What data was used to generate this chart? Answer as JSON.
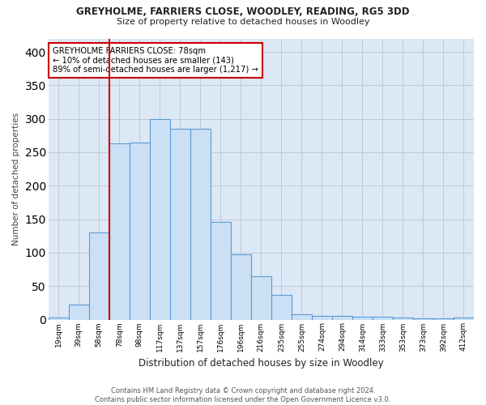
{
  "title": "GREYHOLME, FARRIERS CLOSE, WOODLEY, READING, RG5 3DD",
  "subtitle": "Size of property relative to detached houses in Woodley",
  "xlabel": "Distribution of detached houses by size in Woodley",
  "ylabel": "Number of detached properties",
  "footnote": "Contains HM Land Registry data © Crown copyright and database right 2024.\nContains public sector information licensed under the Open Government Licence v3.0.",
  "bin_labels": [
    "19sqm",
    "39sqm",
    "58sqm",
    "78sqm",
    "98sqm",
    "117sqm",
    "137sqm",
    "157sqm",
    "176sqm",
    "196sqm",
    "216sqm",
    "235sqm",
    "255sqm",
    "274sqm",
    "294sqm",
    "314sqm",
    "333sqm",
    "353sqm",
    "373sqm",
    "392sqm",
    "412sqm"
  ],
  "bar_heights": [
    3,
    22,
    130,
    263,
    264,
    300,
    285,
    285,
    146,
    97,
    65,
    37,
    8,
    5,
    5,
    4,
    4,
    3,
    2,
    2,
    3
  ],
  "bar_color": "#cce0f5",
  "bar_edge_color": "#5b9bd5",
  "vline_x_index": 3,
  "vline_color": "#cc0000",
  "annotation_text": "GREYHOLME FARRIERS CLOSE: 78sqm\n← 10% of detached houses are smaller (143)\n89% of semi-detached houses are larger (1,217) →",
  "annotation_box_color": "#ffffff",
  "annotation_box_edge": "#cc0000",
  "ylim": [
    0,
    420
  ],
  "yticks": [
    0,
    50,
    100,
    150,
    200,
    250,
    300,
    350,
    400
  ],
  "grid_color": "#c0c8d8",
  "background_color": "#dce8f5",
  "fig_background": "#ffffff"
}
